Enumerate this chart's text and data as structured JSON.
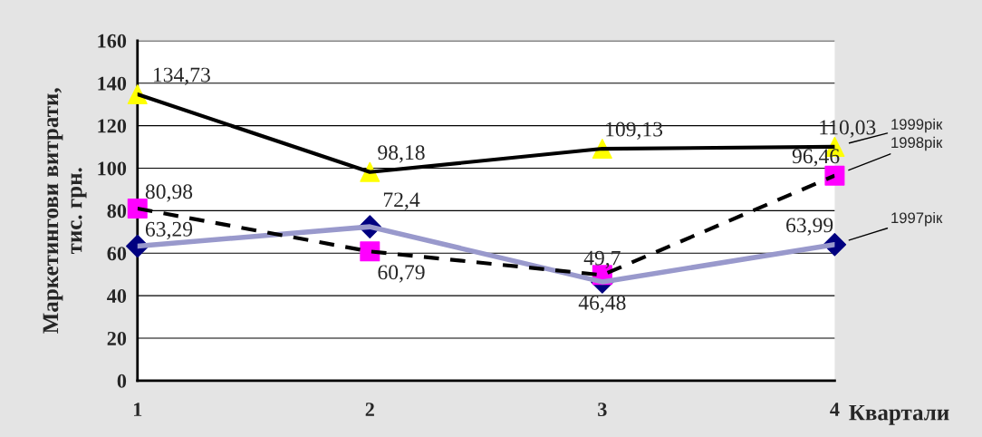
{
  "chart_data": {
    "type": "line",
    "categories": [
      "1",
      "2",
      "3",
      "4"
    ],
    "xlabel": "Квартали",
    "ylabel": "Маркетингови витрати,\nтис. грн.",
    "ylim": [
      0,
      160
    ],
    "yticks": [
      0,
      20,
      40,
      60,
      80,
      100,
      120,
      140,
      160
    ],
    "grid": "y",
    "legend": "right",
    "series": [
      {
        "name": "1999рік",
        "color": "#ffff00",
        "marker": "triangle",
        "line_style": "solid",
        "values": [
          134.73,
          98.18,
          109.13,
          110.03
        ],
        "value_labels": [
          "134,73",
          "98,18",
          "109,13",
          "110,03"
        ]
      },
      {
        "name": "1998рік",
        "color": "#ff00ff",
        "marker": "square",
        "line_style": "dashed",
        "values": [
          80.98,
          60.79,
          49.7,
          96.46
        ],
        "value_labels": [
          "80,98",
          "60,79",
          "49,7",
          "96,46"
        ]
      },
      {
        "name": "1997рік",
        "color": "#000080",
        "marker": "diamond",
        "line_style": "solid",
        "values": [
          63.29,
          72.4,
          46.48,
          63.99
        ],
        "value_labels": [
          "63,29",
          "72,4",
          "46,48",
          "63,99"
        ]
      }
    ]
  }
}
